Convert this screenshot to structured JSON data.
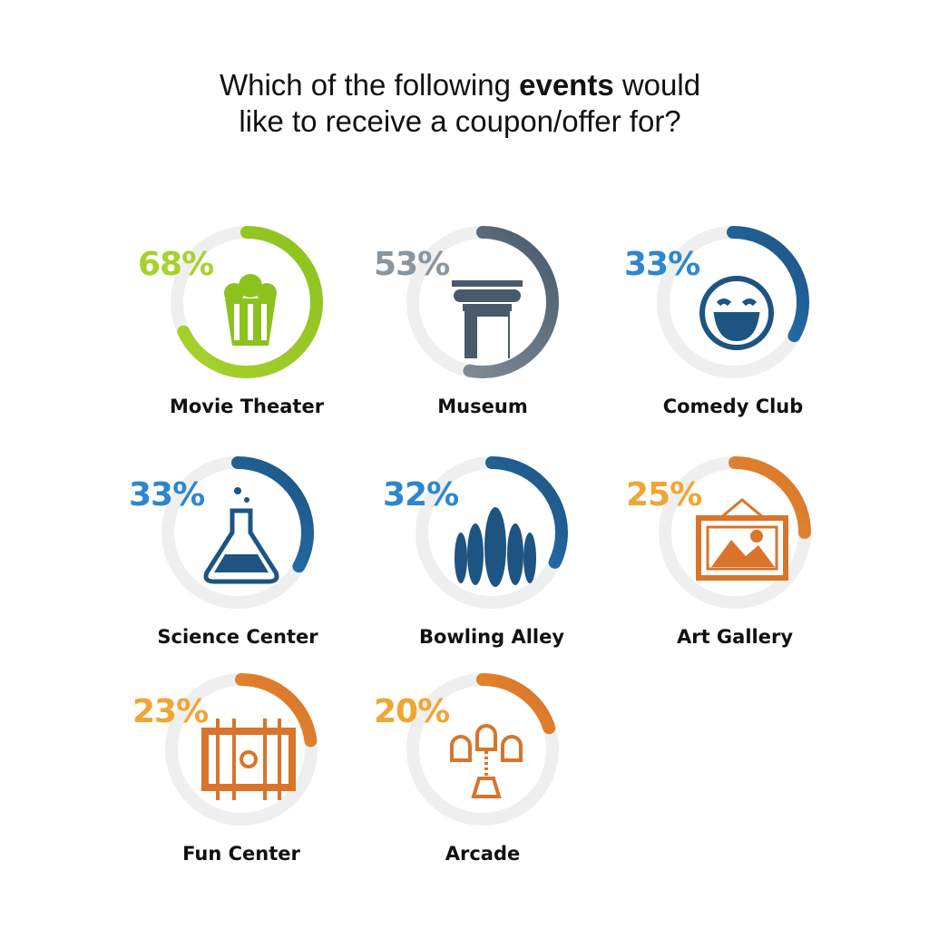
{
  "title": {
    "line1_pre": "Which of the following ",
    "line1_bold": "events",
    "line1_post": " would",
    "line2": "like to receive a coupon/offer for?"
  },
  "chart_data": {
    "type": "donut-grid",
    "unit": "%",
    "items": [
      {
        "label": "Movie Theater",
        "value": 68,
        "value_label": "68%",
        "icon": "popcorn-icon",
        "color": "#8cc21e",
        "color_light": "#a8d12e"
      },
      {
        "label": "Museum",
        "value": 53,
        "value_label": "53%",
        "icon": "column-icon",
        "color": "#485a6b",
        "color_light": "#8a969f"
      },
      {
        "label": "Comedy Club",
        "value": 33,
        "value_label": "33%",
        "icon": "laughing-face-icon",
        "color": "#1d5482",
        "color_light": "#2d86cf"
      },
      {
        "label": "Science Center",
        "value": 33,
        "value_label": "33%",
        "icon": "flask-icon",
        "color": "#1d5482",
        "color_light": "#2d86cf"
      },
      {
        "label": "Bowling Alley",
        "value": 32,
        "value_label": "32%",
        "icon": "bowling-pins-icon",
        "color": "#1d5482",
        "color_light": "#2d86cf"
      },
      {
        "label": "Art Gallery",
        "value": 25,
        "value_label": "25%",
        "icon": "framed-picture-icon",
        "color": "#d9742a",
        "color_light": "#f0a534"
      },
      {
        "label": "Fun Center",
        "value": 23,
        "value_label": "23%",
        "icon": "foosball-table-icon",
        "color": "#d9742a",
        "color_light": "#f0a534"
      },
      {
        "label": "Arcade",
        "value": 20,
        "value_label": "20%",
        "icon": "space-invaders-icon",
        "color": "#d9742a",
        "color_light": "#f0a534"
      }
    ]
  }
}
